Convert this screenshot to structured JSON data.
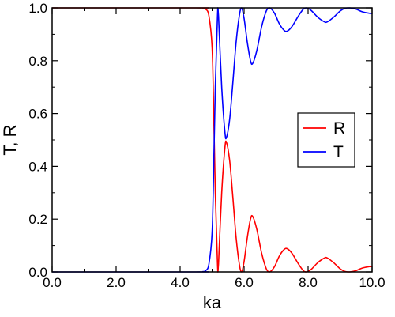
{
  "chart_data": {
    "type": "line",
    "xlabel": "ka",
    "ylabel": "T, R",
    "xlim": [
      0.0,
      10.0
    ],
    "ylim": [
      0.0,
      1.0
    ],
    "x_ticks": [
      "0.0",
      "2.0",
      "4.0",
      "6.0",
      "8.0",
      "10.0"
    ],
    "y_ticks": [
      "0.0",
      "0.2",
      "0.4",
      "0.6",
      "0.8",
      "1.0"
    ],
    "grid": false,
    "legend_position": "right",
    "series": [
      {
        "name": "R",
        "color": "#ff0000",
        "points": [
          [
            0.0,
            1.0
          ],
          [
            4.5,
            1.0
          ],
          [
            4.7,
            0.999
          ],
          [
            4.8,
            0.995
          ],
          [
            4.9,
            0.97
          ],
          [
            5.0,
            0.85
          ],
          [
            5.05,
            0.6
          ],
          [
            5.1,
            0.3
          ],
          [
            5.15,
            0.1
          ],
          [
            5.18,
            0.0
          ],
          [
            5.2,
            0.03
          ],
          [
            5.3,
            0.3
          ],
          [
            5.4,
            0.47
          ],
          [
            5.45,
            0.49
          ],
          [
            5.55,
            0.42
          ],
          [
            5.65,
            0.28
          ],
          [
            5.75,
            0.13
          ],
          [
            5.85,
            0.03
          ],
          [
            5.92,
            0.0
          ],
          [
            6.0,
            0.04
          ],
          [
            6.1,
            0.13
          ],
          [
            6.2,
            0.2
          ],
          [
            6.27,
            0.21
          ],
          [
            6.4,
            0.16
          ],
          [
            6.55,
            0.07
          ],
          [
            6.7,
            0.01
          ],
          [
            6.8,
            0.0
          ],
          [
            6.95,
            0.02
          ],
          [
            7.1,
            0.06
          ],
          [
            7.25,
            0.085
          ],
          [
            7.35,
            0.088
          ],
          [
            7.5,
            0.07
          ],
          [
            7.7,
            0.03
          ],
          [
            7.85,
            0.005
          ],
          [
            7.95,
            0.0
          ],
          [
            8.1,
            0.01
          ],
          [
            8.3,
            0.035
          ],
          [
            8.5,
            0.052
          ],
          [
            8.6,
            0.053
          ],
          [
            8.8,
            0.035
          ],
          [
            9.0,
            0.012
          ],
          [
            9.15,
            0.002
          ],
          [
            9.3,
            0.0
          ],
          [
            9.5,
            0.005
          ],
          [
            9.7,
            0.015
          ],
          [
            9.9,
            0.02
          ],
          [
            10.0,
            0.021
          ]
        ]
      },
      {
        "name": "T",
        "color": "#0000ff",
        "points": [
          [
            0.0,
            0.0
          ],
          [
            4.5,
            0.0
          ],
          [
            4.7,
            0.001
          ],
          [
            4.8,
            0.005
          ],
          [
            4.9,
            0.03
          ],
          [
            5.0,
            0.15
          ],
          [
            5.05,
            0.4
          ],
          [
            5.1,
            0.7
          ],
          [
            5.15,
            0.9
          ],
          [
            5.18,
            1.0
          ],
          [
            5.2,
            0.97
          ],
          [
            5.3,
            0.7
          ],
          [
            5.4,
            0.53
          ],
          [
            5.45,
            0.51
          ],
          [
            5.55,
            0.58
          ],
          [
            5.65,
            0.72
          ],
          [
            5.75,
            0.87
          ],
          [
            5.85,
            0.97
          ],
          [
            5.92,
            1.0
          ],
          [
            6.0,
            0.96
          ],
          [
            6.1,
            0.87
          ],
          [
            6.2,
            0.8
          ],
          [
            6.27,
            0.79
          ],
          [
            6.4,
            0.84
          ],
          [
            6.55,
            0.93
          ],
          [
            6.7,
            0.99
          ],
          [
            6.8,
            1.0
          ],
          [
            6.95,
            0.98
          ],
          [
            7.1,
            0.94
          ],
          [
            7.25,
            0.915
          ],
          [
            7.35,
            0.912
          ],
          [
            7.5,
            0.93
          ],
          [
            7.7,
            0.97
          ],
          [
            7.85,
            0.995
          ],
          [
            7.95,
            1.0
          ],
          [
            8.1,
            0.99
          ],
          [
            8.3,
            0.965
          ],
          [
            8.5,
            0.948
          ],
          [
            8.6,
            0.947
          ],
          [
            8.8,
            0.965
          ],
          [
            9.0,
            0.988
          ],
          [
            9.15,
            0.998
          ],
          [
            9.3,
            1.0
          ],
          [
            9.5,
            0.995
          ],
          [
            9.7,
            0.985
          ],
          [
            9.9,
            0.98
          ],
          [
            10.0,
            0.979
          ]
        ]
      }
    ]
  }
}
